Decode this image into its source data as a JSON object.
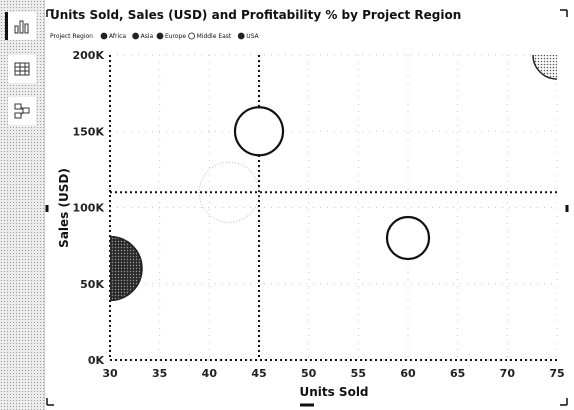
{
  "chart_data": {
    "type": "scatter",
    "title": "Units Sold, Sales (USD) and Profitability % by Project Region",
    "xlabel": "Units Sold",
    "ylabel": "Sales (USD)",
    "xlim": [
      30,
      75
    ],
    "ylim": [
      0,
      200000
    ],
    "x_ticks": [
      "30",
      "35",
      "40",
      "45",
      "50",
      "55",
      "60",
      "65",
      "70",
      "75"
    ],
    "y_ticks": [
      "0K",
      "50K",
      "100K",
      "150K",
      "200K"
    ],
    "legend": {
      "title": "Project Region",
      "placement": "top-left",
      "entries": [
        "Africa",
        "Asia",
        "Europe",
        "Middle East",
        "USA"
      ]
    },
    "series": [
      {
        "name": "Africa",
        "x": 30,
        "y": 60000,
        "style": "dark"
      },
      {
        "name": "Asia",
        "x": 45,
        "y": 150000,
        "style": "white"
      },
      {
        "name": "Europe",
        "x": 42,
        "y": 110000,
        "style": "faint"
      },
      {
        "name": "Middle East",
        "x": 60,
        "y": 80000,
        "style": "white"
      },
      {
        "name": "USA",
        "x": 75,
        "y": 200000,
        "style": "dotted"
      }
    ],
    "reference_lines": {
      "x": 45,
      "y": 110000
    },
    "grid": true,
    "colors": {
      "dark": "#3a3a3a",
      "dotted": "#bdbdbd",
      "line": "#111111"
    }
  }
}
